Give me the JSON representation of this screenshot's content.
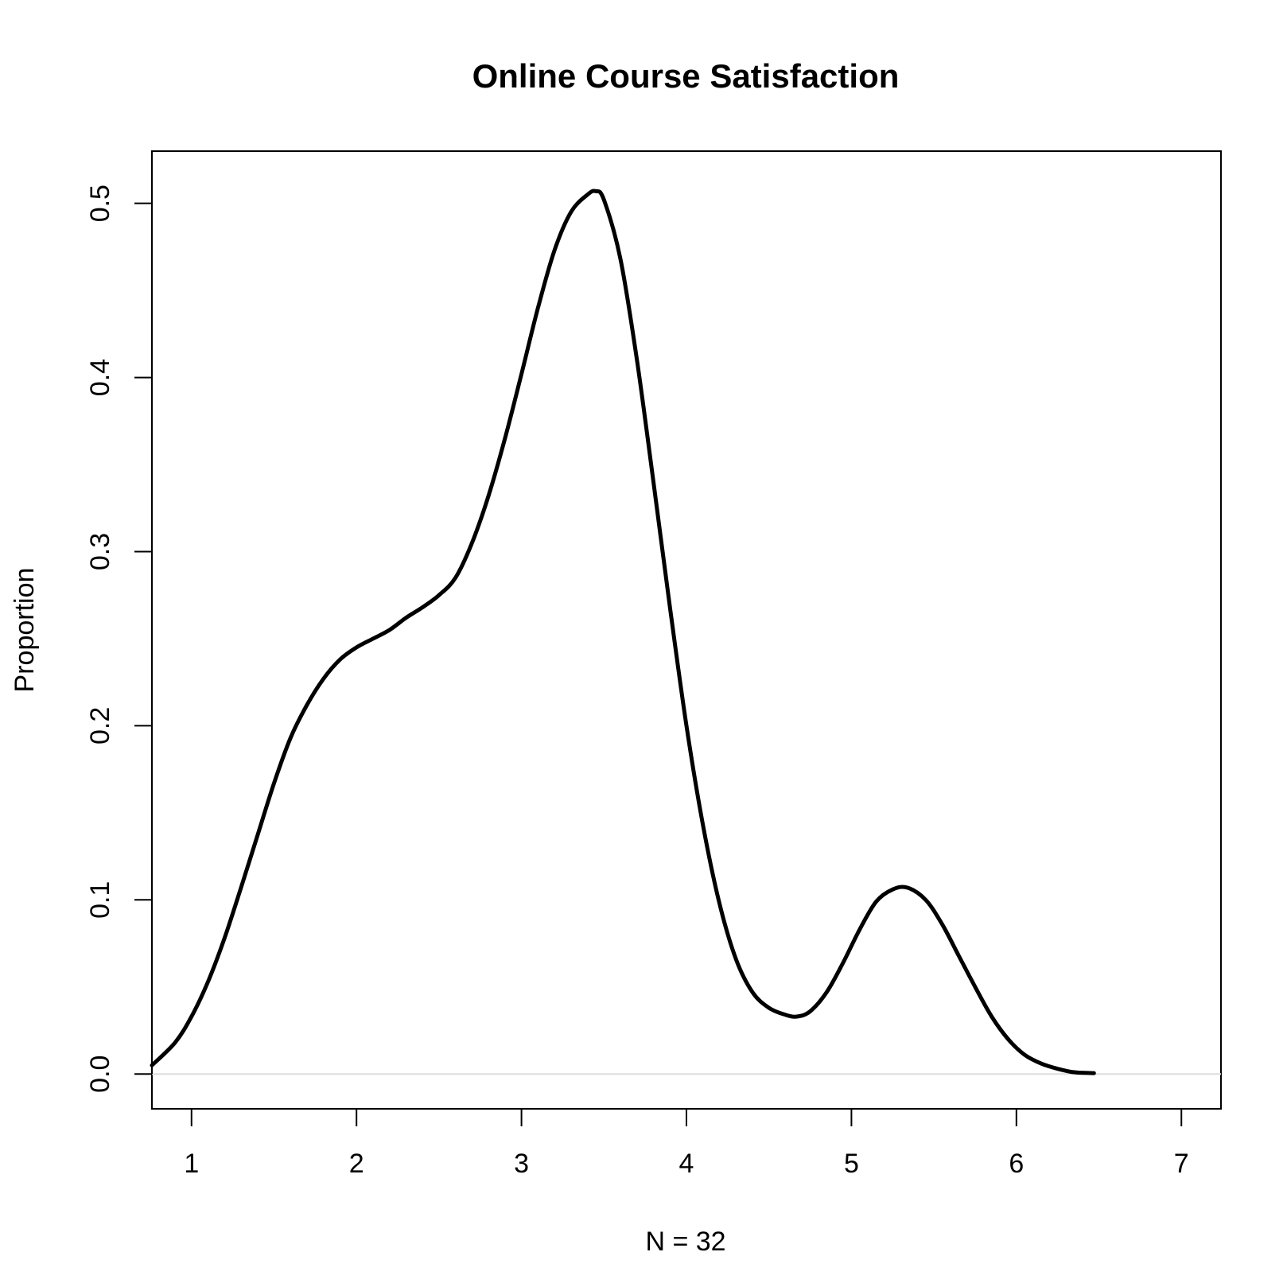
{
  "chart_data": {
    "type": "line",
    "title": "Online Course Satisfaction",
    "xlabel": "N = 32",
    "ylabel": "Proportion",
    "xlim": [
      0.76,
      7.24
    ],
    "ylim": [
      -0.02,
      0.53
    ],
    "x_ticks": [
      1,
      2,
      3,
      4,
      5,
      6,
      7
    ],
    "x_tick_labels": [
      "1",
      "2",
      "3",
      "4",
      "5",
      "6",
      "7"
    ],
    "y_ticks": [
      0.0,
      0.1,
      0.2,
      0.3,
      0.4,
      0.5
    ],
    "y_tick_labels": [
      "0.0",
      "0.1",
      "0.2",
      "0.3",
      "0.4",
      "0.5"
    ],
    "baseline": 0,
    "grid": false,
    "colors": {
      "line": "#000000",
      "baseline": "#dddddd",
      "frame": "#000000"
    },
    "series": [
      {
        "x": [
          0.76,
          0.9,
          1.0,
          1.1,
          1.2,
          1.3,
          1.4,
          1.5,
          1.6,
          1.7,
          1.8,
          1.9,
          2.0,
          2.1,
          2.2,
          2.3,
          2.4,
          2.5,
          2.6,
          2.7,
          2.8,
          2.9,
          3.0,
          3.1,
          3.2,
          3.3,
          3.4,
          3.45,
          3.5,
          3.6,
          3.7,
          3.8,
          3.9,
          4.0,
          4.1,
          4.2,
          4.3,
          4.4,
          4.5,
          4.6,
          4.67,
          4.75,
          4.85,
          4.95,
          5.05,
          5.15,
          5.25,
          5.34,
          5.45,
          5.55,
          5.65,
          5.75,
          5.85,
          5.95,
          6.05,
          6.15,
          6.25,
          6.35,
          6.47
        ],
        "y": [
          0.005,
          0.018,
          0.033,
          0.053,
          0.078,
          0.107,
          0.137,
          0.167,
          0.193,
          0.212,
          0.227,
          0.238,
          0.245,
          0.25,
          0.255,
          0.262,
          0.268,
          0.275,
          0.285,
          0.305,
          0.332,
          0.365,
          0.402,
          0.44,
          0.473,
          0.495,
          0.505,
          0.507,
          0.502,
          0.468,
          0.41,
          0.34,
          0.268,
          0.2,
          0.143,
          0.098,
          0.066,
          0.047,
          0.038,
          0.034,
          0.033,
          0.036,
          0.047,
          0.064,
          0.083,
          0.099,
          0.106,
          0.107,
          0.1,
          0.086,
          0.068,
          0.05,
          0.033,
          0.02,
          0.011,
          0.006,
          0.003,
          0.001,
          0.0005
        ]
      }
    ]
  }
}
